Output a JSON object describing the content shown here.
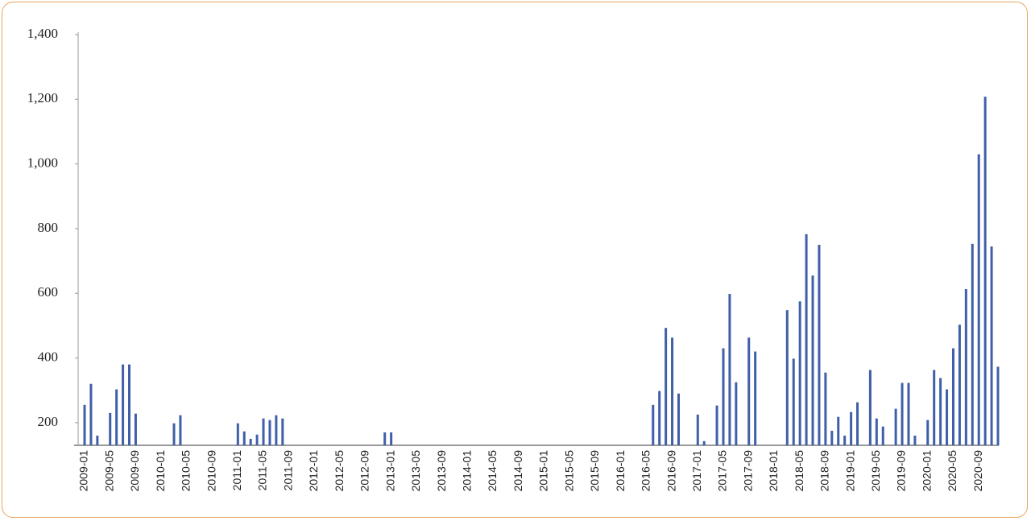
{
  "chart_data": {
    "type": "bar",
    "categories": [
      "2009-01",
      null,
      null,
      null,
      "2009-05",
      null,
      null,
      null,
      "2009-09",
      null,
      null,
      null,
      "2010-01",
      null,
      null,
      null,
      "2010-05",
      null,
      null,
      null,
      "2010-09",
      null,
      null,
      null,
      "2011-01",
      null,
      null,
      null,
      "2011-05",
      null,
      null,
      null,
      "2011-09",
      null,
      null,
      null,
      "2012-01",
      null,
      null,
      null,
      "2012-05",
      null,
      null,
      null,
      "2012-09",
      null,
      null,
      null,
      "2013-01",
      null,
      null,
      null,
      "2013-05",
      null,
      null,
      null,
      "2013-09",
      null,
      null,
      null,
      "2014-01",
      null,
      null,
      null,
      "2014-05",
      null,
      null,
      null,
      "2014-09",
      null,
      null,
      null,
      "2015-01",
      null,
      null,
      null,
      "2015-05",
      null,
      null,
      null,
      "2015-09",
      null,
      null,
      null,
      "2016-01",
      null,
      null,
      null,
      "2016-05",
      null,
      null,
      null,
      "2016-09",
      null,
      null,
      null,
      "2017-01",
      null,
      null,
      null,
      "2017-05",
      null,
      null,
      null,
      "2017-09",
      null,
      null,
      null,
      "2018-01",
      null,
      null,
      null,
      "2018-05",
      null,
      null,
      null,
      "2018-09",
      null,
      null,
      null,
      "2019-01",
      null,
      null,
      null,
      "2019-05",
      null,
      null,
      null,
      "2019-09",
      null,
      null,
      null,
      "2020-01",
      null,
      null,
      null,
      "2020-05",
      null,
      null,
      null,
      "2020-09",
      null,
      null,
      null
    ],
    "values": [
      255,
      320,
      160,
      null,
      230,
      303,
      380,
      380,
      228,
      null,
      null,
      null,
      null,
      null,
      198,
      223,
      null,
      null,
      null,
      null,
      null,
      null,
      null,
      null,
      198,
      173,
      150,
      163,
      213,
      208,
      223,
      213,
      null,
      null,
      null,
      null,
      null,
      null,
      null,
      null,
      null,
      null,
      null,
      null,
      null,
      null,
      null,
      170,
      170,
      null,
      null,
      null,
      null,
      null,
      null,
      null,
      null,
      null,
      null,
      null,
      null,
      null,
      null,
      null,
      null,
      null,
      null,
      null,
      null,
      null,
      null,
      null,
      null,
      null,
      null,
      null,
      null,
      null,
      null,
      null,
      null,
      null,
      null,
      null,
      null,
      null,
      null,
      null,
      null,
      255,
      298,
      493,
      463,
      290,
      null,
      null,
      225,
      143,
      null,
      253,
      430,
      598,
      325,
      null,
      463,
      420,
      null,
      null,
      null,
      null,
      548,
      398,
      575,
      783,
      655,
      750,
      355,
      175,
      218,
      160,
      233,
      263,
      null,
      363,
      213,
      188,
      null,
      243,
      323,
      323,
      160,
      null,
      208,
      363,
      338,
      303,
      430,
      503,
      613,
      753,
      1030,
      1208,
      745,
      373
    ],
    "color": "#3f5fa8",
    "ylim": [
      130,
      1400
    ],
    "yticks": [
      200,
      400,
      600,
      800,
      {
        "value": 1000,
        "label": "1,000"
      },
      {
        "value": 1200,
        "label": "1,200"
      },
      {
        "value": 1400,
        "label": "1,400"
      }
    ],
    "grid": false
  }
}
